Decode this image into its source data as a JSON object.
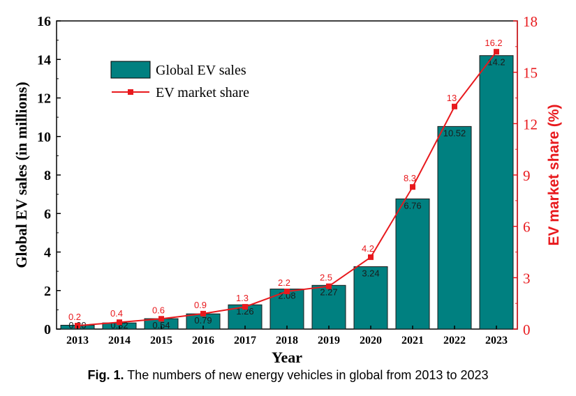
{
  "chart_data": {
    "type": "bar",
    "categories": [
      "2013",
      "2014",
      "2015",
      "2016",
      "2017",
      "2018",
      "2019",
      "2020",
      "2021",
      "2022",
      "2023"
    ],
    "series": [
      {
        "name": "Global EV sales",
        "type": "bar",
        "axis": "left",
        "values": [
          0.2,
          0.32,
          0.54,
          0.79,
          1.26,
          2.08,
          2.27,
          3.24,
          6.76,
          10.52,
          14.2
        ],
        "labels": [
          "0.20",
          "0.32",
          "0.54",
          "0.79",
          "1.26",
          "2.08",
          "2.27",
          "3.24",
          "6.76",
          "10.52",
          "14.2"
        ]
      },
      {
        "name": "EV market share",
        "type": "line",
        "axis": "right",
        "values": [
          0.2,
          0.4,
          0.6,
          0.9,
          1.3,
          2.2,
          2.5,
          4.2,
          8.3,
          13,
          16.2
        ],
        "labels": [
          "0.2",
          "0.4",
          "0.6",
          "0.9",
          "1.3",
          "2.2",
          "2.5",
          "4.2",
          "8.3",
          "13",
          "16.2"
        ]
      }
    ],
    "xlabel": "Year",
    "ylabel": "Global EV sales (in millions)",
    "y2label": "EV market share (%)",
    "ylim": [
      0,
      16
    ],
    "y2lim": [
      0,
      18
    ],
    "yticks": [
      "0",
      "2",
      "4",
      "6",
      "8",
      "10",
      "12",
      "14",
      "16"
    ],
    "y2ticks": [
      "0",
      "3",
      "6",
      "9",
      "12",
      "15",
      "18"
    ],
    "legend_position": "top-left",
    "grid": false,
    "colors": {
      "bar": "#008080",
      "line": "#e8191d",
      "right_axis": "#e8191d",
      "axis": "#000000"
    }
  },
  "caption": {
    "prefix": "Fig. 1.",
    "text": " The numbers of new energy vehicles in global from 2013 to 2023"
  }
}
